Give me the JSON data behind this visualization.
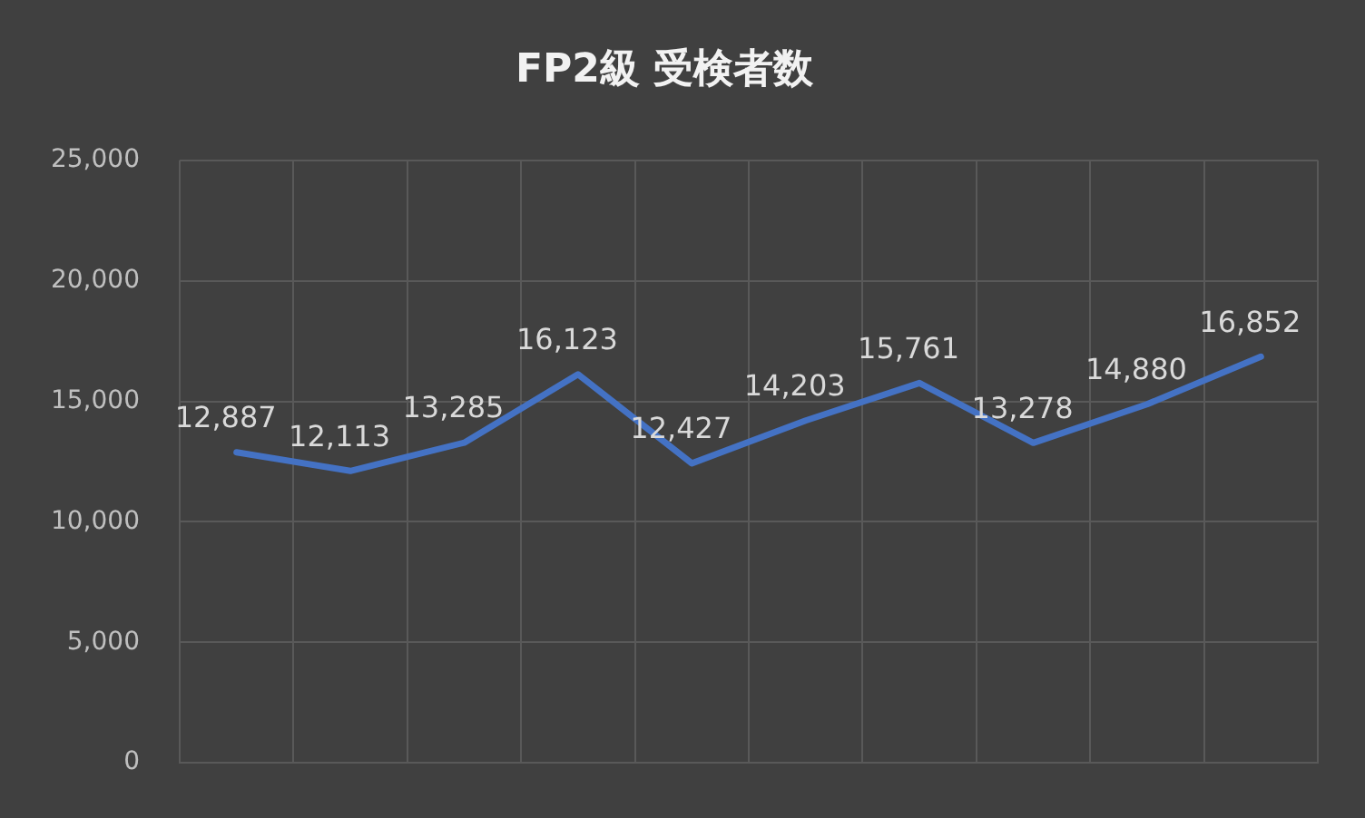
{
  "chart_data": {
    "type": "line",
    "title": "FP2級 受検者数",
    "categories": [
      null,
      null,
      null,
      null,
      null,
      null,
      null,
      null,
      null,
      null
    ],
    "series": [
      {
        "color": "#4472c4",
        "values": [
          12887,
          12113,
          13285,
          16123,
          12427,
          14203,
          15761,
          13278,
          14880,
          16852
        ],
        "value_labels": [
          "12,887",
          "12,113",
          "13,285",
          "16,123",
          "12,427",
          "14,203",
          "15,761",
          "13,278",
          "14,880",
          "16,852"
        ]
      }
    ],
    "ylim": [
      0,
      25000
    ],
    "yticks": [
      0,
      {
        "value": 5000,
        "label": "5,000"
      },
      {
        "value": 10000,
        "label": "10,000"
      },
      {
        "value": 15000,
        "label": "15,000"
      },
      {
        "value": 20000,
        "label": "20,000"
      },
      {
        "value": 25000,
        "label": "25,000"
      }
    ],
    "grid": true,
    "legend": false,
    "marker": "none",
    "line_style": "solid"
  }
}
